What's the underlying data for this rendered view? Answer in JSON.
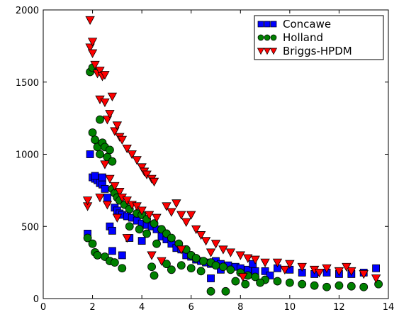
{
  "chart_data": {
    "type": "scatter",
    "title": "",
    "xlabel": "",
    "ylabel": "",
    "xlim": [
      0,
      14
    ],
    "ylim": [
      0,
      2000
    ],
    "xticks": [
      0,
      2,
      4,
      6,
      8,
      10,
      12,
      14
    ],
    "yticks": [
      0,
      500,
      1000,
      1500,
      2000
    ],
    "grid": false,
    "legend_position": "top-right",
    "series": [
      {
        "name": "Concawe",
        "marker": "square",
        "color": "#0000ff",
        "points": [
          [
            1.8,
            450
          ],
          [
            1.9,
            1000
          ],
          [
            2.0,
            840
          ],
          [
            2.1,
            830
          ],
          [
            2.2,
            820
          ],
          [
            2.3,
            800
          ],
          [
            2.4,
            790
          ],
          [
            2.5,
            760
          ],
          [
            2.1,
            850
          ],
          [
            2.4,
            840
          ],
          [
            2.6,
            700
          ],
          [
            2.7,
            500
          ],
          [
            2.8,
            470
          ],
          [
            2.9,
            630
          ],
          [
            3.0,
            610
          ],
          [
            3.1,
            590
          ],
          [
            3.2,
            580
          ],
          [
            3.4,
            570
          ],
          [
            3.6,
            560
          ],
          [
            3.8,
            540
          ],
          [
            4.0,
            520
          ],
          [
            4.2,
            510
          ],
          [
            4.4,
            500
          ],
          [
            4.6,
            480
          ],
          [
            4.8,
            430
          ],
          [
            5.0,
            410
          ],
          [
            5.2,
            380
          ],
          [
            5.4,
            350
          ],
          [
            5.6,
            340
          ],
          [
            5.8,
            300
          ],
          [
            6.0,
            290
          ],
          [
            6.2,
            270
          ],
          [
            6.4,
            260
          ],
          [
            6.6,
            250
          ],
          [
            6.8,
            240
          ],
          [
            7.0,
            260
          ],
          [
            7.2,
            240
          ],
          [
            7.5,
            230
          ],
          [
            7.8,
            220
          ],
          [
            8.0,
            210
          ],
          [
            8.3,
            200
          ],
          [
            8.6,
            190
          ],
          [
            9.0,
            190
          ],
          [
            9.5,
            210
          ],
          [
            10.0,
            200
          ],
          [
            10.5,
            180
          ],
          [
            11.0,
            170
          ],
          [
            11.5,
            180
          ],
          [
            12.0,
            170
          ],
          [
            12.5,
            170
          ],
          [
            13.0,
            180
          ],
          [
            13.5,
            210
          ],
          [
            2.8,
            330
          ],
          [
            3.2,
            300
          ],
          [
            4.0,
            400
          ],
          [
            3.5,
            420
          ],
          [
            6.8,
            140
          ],
          [
            7.2,
            200
          ],
          [
            8.5,
            240
          ],
          [
            9.2,
            160
          ]
        ]
      },
      {
        "name": "Holland",
        "marker": "circle",
        "color": "#008000",
        "points": [
          [
            1.8,
            420
          ],
          [
            1.9,
            1570
          ],
          [
            2.0,
            1600
          ],
          [
            2.0,
            1150
          ],
          [
            2.1,
            1100
          ],
          [
            2.2,
            1050
          ],
          [
            2.3,
            1000
          ],
          [
            2.3,
            1240
          ],
          [
            2.4,
            1080
          ],
          [
            2.5,
            1050
          ],
          [
            2.6,
            980
          ],
          [
            2.7,
            1030
          ],
          [
            2.8,
            950
          ],
          [
            2.8,
            760
          ],
          [
            2.9,
            730
          ],
          [
            3.0,
            700
          ],
          [
            3.1,
            680
          ],
          [
            3.3,
            650
          ],
          [
            3.5,
            620
          ],
          [
            3.8,
            590
          ],
          [
            4.0,
            580
          ],
          [
            4.2,
            550
          ],
          [
            4.5,
            520
          ],
          [
            4.8,
            480
          ],
          [
            5.0,
            450
          ],
          [
            5.2,
            420
          ],
          [
            5.5,
            380
          ],
          [
            5.8,
            340
          ],
          [
            6.0,
            300
          ],
          [
            6.2,
            280
          ],
          [
            6.5,
            260
          ],
          [
            6.8,
            250
          ],
          [
            7.0,
            230
          ],
          [
            7.3,
            220
          ],
          [
            7.6,
            200
          ],
          [
            8.0,
            180
          ],
          [
            8.3,
            160
          ],
          [
            8.6,
            150
          ],
          [
            9.0,
            130
          ],
          [
            9.5,
            120
          ],
          [
            10.0,
            110
          ],
          [
            10.5,
            100
          ],
          [
            11.0,
            90
          ],
          [
            11.5,
            80
          ],
          [
            12.0,
            90
          ],
          [
            12.5,
            85
          ],
          [
            13.0,
            80
          ],
          [
            13.6,
            100
          ],
          [
            2.0,
            380
          ],
          [
            2.1,
            320
          ],
          [
            2.2,
            300
          ],
          [
            2.5,
            290
          ],
          [
            2.7,
            260
          ],
          [
            2.9,
            250
          ],
          [
            3.2,
            210
          ],
          [
            4.4,
            220
          ],
          [
            4.5,
            160
          ],
          [
            5.0,
            240
          ],
          [
            5.2,
            200
          ],
          [
            5.6,
            230
          ],
          [
            6.0,
            210
          ],
          [
            6.4,
            190
          ],
          [
            6.8,
            50
          ],
          [
            7.4,
            50
          ],
          [
            7.8,
            120
          ],
          [
            8.2,
            100
          ],
          [
            8.8,
            110
          ],
          [
            3.5,
            500
          ],
          [
            3.9,
            480
          ],
          [
            4.2,
            450
          ],
          [
            4.6,
            380
          ]
        ]
      },
      {
        "name": "Briggs-HPDM",
        "marker": "triangle-down",
        "color": "#ff0000",
        "points": [
          [
            1.8,
            640
          ],
          [
            1.8,
            680
          ],
          [
            1.9,
            1930
          ],
          [
            1.9,
            1740
          ],
          [
            2.0,
            1780
          ],
          [
            2.0,
            1700
          ],
          [
            2.1,
            1620
          ],
          [
            2.2,
            1560
          ],
          [
            2.3,
            1580
          ],
          [
            2.3,
            1380
          ],
          [
            2.4,
            1540
          ],
          [
            2.5,
            1550
          ],
          [
            2.5,
            1360
          ],
          [
            2.6,
            1240
          ],
          [
            2.7,
            1280
          ],
          [
            2.8,
            1400
          ],
          [
            2.9,
            1160
          ],
          [
            3.0,
            1200
          ],
          [
            3.1,
            1120
          ],
          [
            3.2,
            1100
          ],
          [
            3.4,
            1040
          ],
          [
            3.6,
            1000
          ],
          [
            3.8,
            960
          ],
          [
            4.0,
            910
          ],
          [
            4.1,
            880
          ],
          [
            4.2,
            860
          ],
          [
            4.4,
            830
          ],
          [
            4.5,
            810
          ],
          [
            2.5,
            930
          ],
          [
            2.7,
            830
          ],
          [
            2.9,
            780
          ],
          [
            3.1,
            740
          ],
          [
            3.2,
            700
          ],
          [
            3.4,
            680
          ],
          [
            3.6,
            650
          ],
          [
            3.8,
            640
          ],
          [
            4.0,
            610
          ],
          [
            4.3,
            580
          ],
          [
            4.6,
            560
          ],
          [
            5.0,
            640
          ],
          [
            5.2,
            600
          ],
          [
            5.4,
            660
          ],
          [
            5.6,
            580
          ],
          [
            5.8,
            530
          ],
          [
            6.0,
            580
          ],
          [
            6.2,
            480
          ],
          [
            6.4,
            440
          ],
          [
            6.6,
            400
          ],
          [
            7.0,
            380
          ],
          [
            7.3,
            340
          ],
          [
            7.6,
            320
          ],
          [
            8.0,
            300
          ],
          [
            8.3,
            280
          ],
          [
            8.6,
            270
          ],
          [
            9.0,
            250
          ],
          [
            9.5,
            250
          ],
          [
            10.0,
            240
          ],
          [
            10.5,
            220
          ],
          [
            11.0,
            200
          ],
          [
            11.5,
            210
          ],
          [
            12.0,
            190
          ],
          [
            12.5,
            190
          ],
          [
            13.0,
            170
          ],
          [
            13.5,
            140
          ],
          [
            2.3,
            700
          ],
          [
            2.6,
            650
          ],
          [
            3.0,
            560
          ],
          [
            3.4,
            420
          ],
          [
            4.4,
            300
          ],
          [
            4.8,
            260
          ],
          [
            5.6,
            340
          ],
          [
            6.8,
            320
          ],
          [
            8.1,
            150
          ],
          [
            9.8,
            200
          ],
          [
            11.2,
            180
          ],
          [
            12.3,
            220
          ]
        ]
      }
    ]
  }
}
